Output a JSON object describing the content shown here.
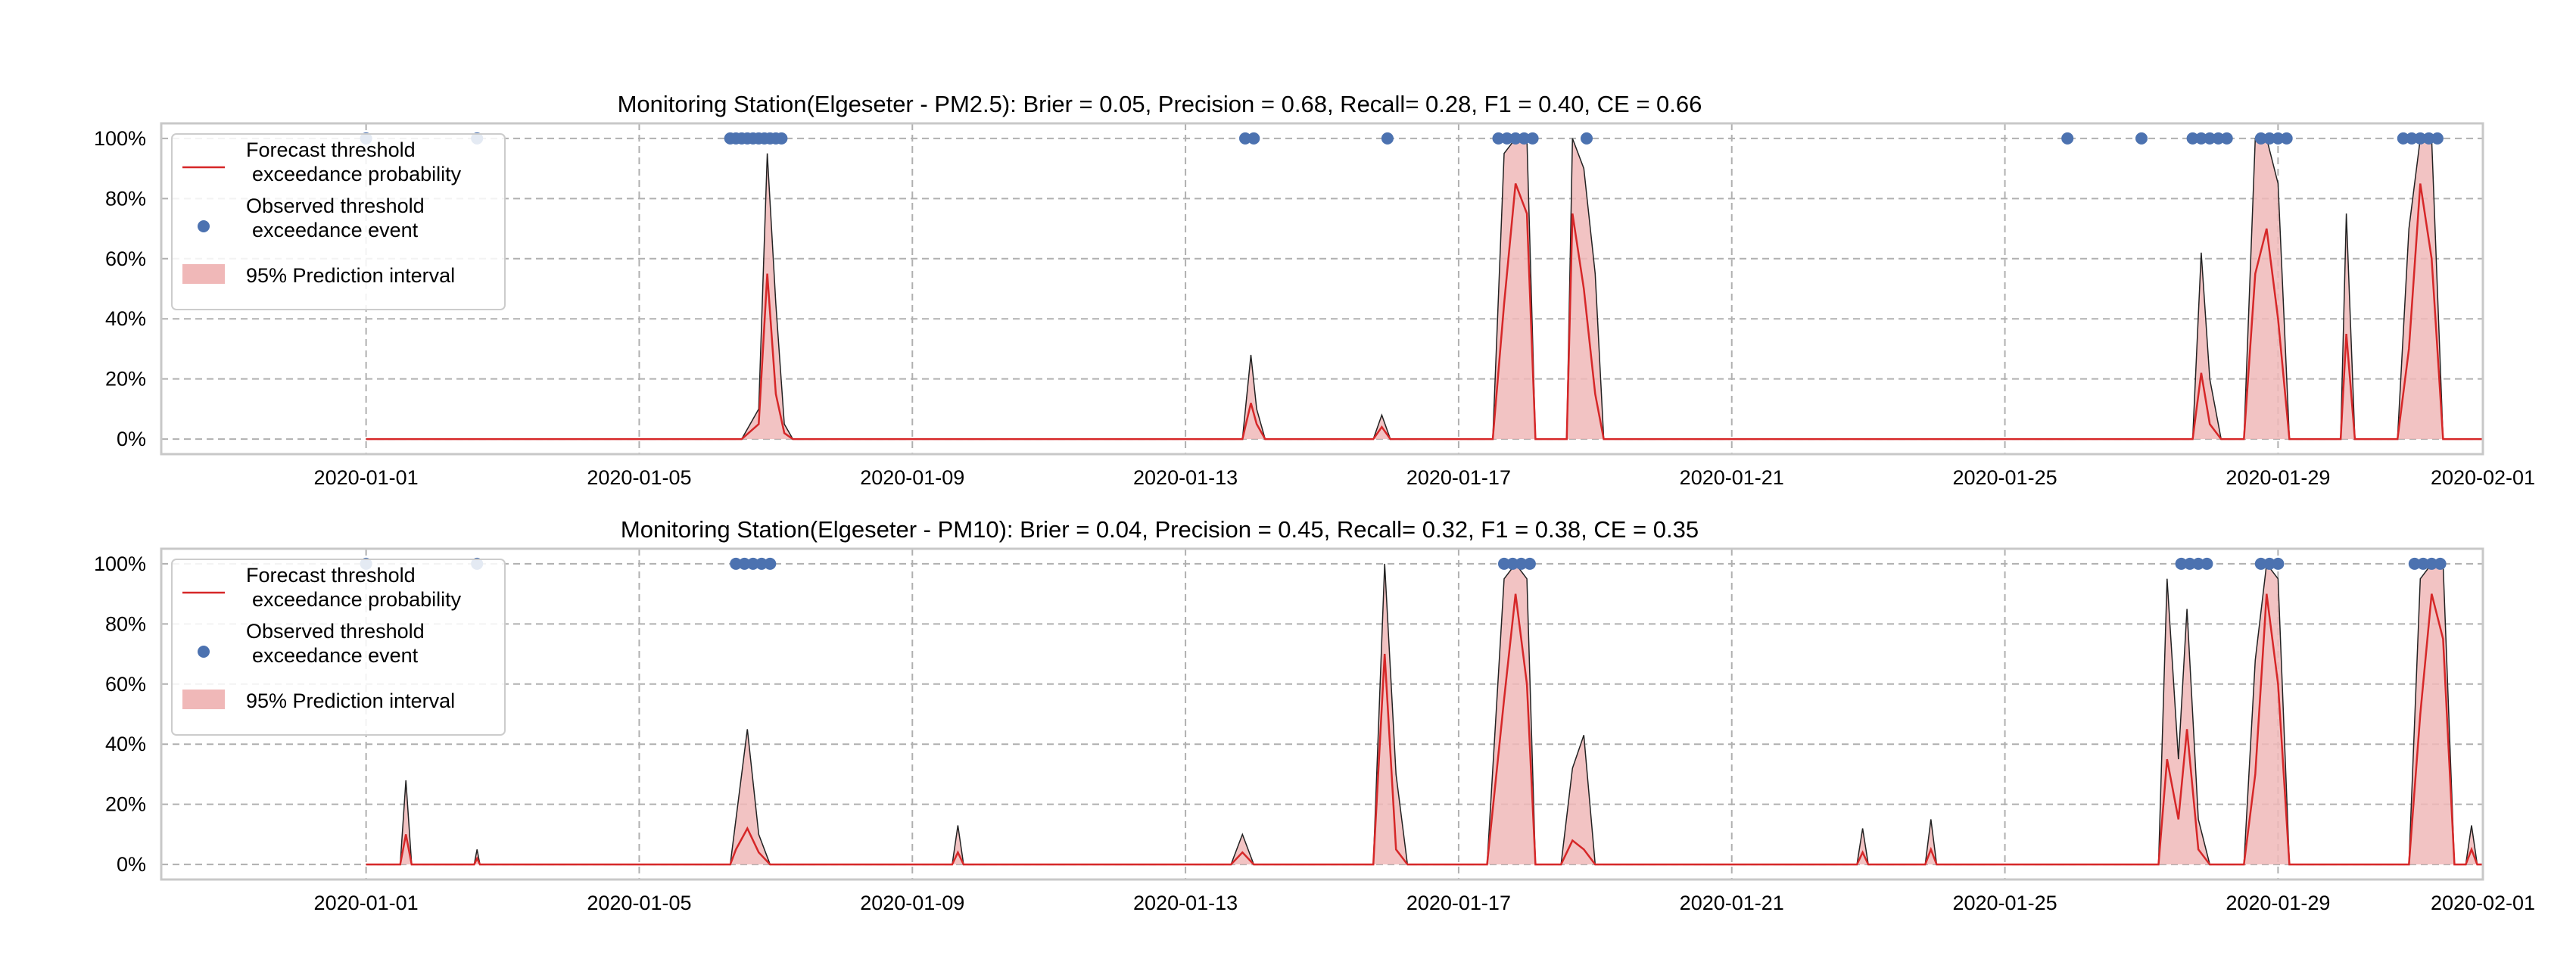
{
  "colors": {
    "forecast_line": "#d62728",
    "observed_marker": "#4c72b0",
    "interval_fill": "#f0b8b8",
    "grid": "#b0b0b0",
    "axes": "#c8c8c8"
  },
  "chart_data": [
    {
      "type": "line",
      "title": "Monitoring Station(Elgeseter - PM2.5): Brier = 0.05, Precision = 0.68, Recall= 0.28, F1 = 0.40, CE = 0.66",
      "xlabel": "",
      "ylabel": "",
      "xlim": [
        "2019-12-29",
        "2020-02-01"
      ],
      "ylim": [
        -0.05,
        1.05
      ],
      "xticks": [
        "2020-01-01",
        "2020-01-05",
        "2020-01-09",
        "2020-01-13",
        "2020-01-17",
        "2020-01-21",
        "2020-01-25",
        "2020-01-29",
        "2020-02-01"
      ],
      "yticks": [
        "0%",
        "20%",
        "40%",
        "60%",
        "80%",
        "100%"
      ],
      "grid": true,
      "legend_position": "top-left",
      "legend": [
        "Forecast threshold\n exceedance probability",
        "Observed threshold\n exceedance event",
        "95% Prediction interval"
      ],
      "forecast_probability": [
        {
          "x": "2020-01-01",
          "y": 0.0
        },
        {
          "x": "2020-01-06 12:00",
          "y": 0.0
        },
        {
          "x": "2020-01-06 18:00",
          "y": 0.05
        },
        {
          "x": "2020-01-06 21:00",
          "y": 0.55
        },
        {
          "x": "2020-01-07 00:00",
          "y": 0.15
        },
        {
          "x": "2020-01-07 03:00",
          "y": 0.02
        },
        {
          "x": "2020-01-07 06:00",
          "y": 0.0
        },
        {
          "x": "2020-01-13 20:00",
          "y": 0.0
        },
        {
          "x": "2020-01-13 23:00",
          "y": 0.12
        },
        {
          "x": "2020-01-14 01:00",
          "y": 0.05
        },
        {
          "x": "2020-01-14 04:00",
          "y": 0.0
        },
        {
          "x": "2020-01-15 18:00",
          "y": 0.0
        },
        {
          "x": "2020-01-15 21:00",
          "y": 0.04
        },
        {
          "x": "2020-01-16 00:00",
          "y": 0.0
        },
        {
          "x": "2020-01-17 12:00",
          "y": 0.0
        },
        {
          "x": "2020-01-17 16:00",
          "y": 0.45
        },
        {
          "x": "2020-01-17 20:00",
          "y": 0.85
        },
        {
          "x": "2020-01-18 00:00",
          "y": 0.75
        },
        {
          "x": "2020-01-18 03:00",
          "y": 0.0
        },
        {
          "x": "2020-01-18 14:00",
          "y": 0.0
        },
        {
          "x": "2020-01-18 16:00",
          "y": 0.75
        },
        {
          "x": "2020-01-18 20:00",
          "y": 0.5
        },
        {
          "x": "2020-01-19 00:00",
          "y": 0.15
        },
        {
          "x": "2020-01-19 03:00",
          "y": 0.0
        },
        {
          "x": "2020-01-27 18:00",
          "y": 0.0
        },
        {
          "x": "2020-01-27 21:00",
          "y": 0.22
        },
        {
          "x": "2020-01-28 00:00",
          "y": 0.05
        },
        {
          "x": "2020-01-28 04:00",
          "y": 0.0
        },
        {
          "x": "2020-01-28 12:00",
          "y": 0.0
        },
        {
          "x": "2020-01-28 16:00",
          "y": 0.55
        },
        {
          "x": "2020-01-28 20:00",
          "y": 0.7
        },
        {
          "x": "2020-01-29 00:00",
          "y": 0.4
        },
        {
          "x": "2020-01-29 04:00",
          "y": 0.0
        },
        {
          "x": "2020-01-29 22:00",
          "y": 0.0
        },
        {
          "x": "2020-01-30 00:00",
          "y": 0.35
        },
        {
          "x": "2020-01-30 03:00",
          "y": 0.0
        },
        {
          "x": "2020-01-30 18:00",
          "y": 0.0
        },
        {
          "x": "2020-01-30 22:00",
          "y": 0.3
        },
        {
          "x": "2020-01-31 02:00",
          "y": 0.85
        },
        {
          "x": "2020-01-31 06:00",
          "y": 0.6
        },
        {
          "x": "2020-01-31 10:00",
          "y": 0.0
        },
        {
          "x": "2020-02-01",
          "y": 0.0
        }
      ],
      "interval_upper": [
        {
          "x": "2020-01-01",
          "y": 0.0
        },
        {
          "x": "2020-01-06 12:00",
          "y": 0.0
        },
        {
          "x": "2020-01-06 18:00",
          "y": 0.1
        },
        {
          "x": "2020-01-06 21:00",
          "y": 0.95
        },
        {
          "x": "2020-01-07 00:00",
          "y": 0.45
        },
        {
          "x": "2020-01-07 03:00",
          "y": 0.05
        },
        {
          "x": "2020-01-07 06:00",
          "y": 0.0
        },
        {
          "x": "2020-01-13 20:00",
          "y": 0.0
        },
        {
          "x": "2020-01-13 23:00",
          "y": 0.28
        },
        {
          "x": "2020-01-14 01:00",
          "y": 0.1
        },
        {
          "x": "2020-01-14 04:00",
          "y": 0.0
        },
        {
          "x": "2020-01-15 18:00",
          "y": 0.0
        },
        {
          "x": "2020-01-15 21:00",
          "y": 0.08
        },
        {
          "x": "2020-01-16 00:00",
          "y": 0.0
        },
        {
          "x": "2020-01-17 12:00",
          "y": 0.0
        },
        {
          "x": "2020-01-17 16:00",
          "y": 0.95
        },
        {
          "x": "2020-01-17 20:00",
          "y": 1.0
        },
        {
          "x": "2020-01-18 00:00",
          "y": 1.0
        },
        {
          "x": "2020-01-18 03:00",
          "y": 0.0
        },
        {
          "x": "2020-01-18 14:00",
          "y": 0.0
        },
        {
          "x": "2020-01-18 16:00",
          "y": 1.0
        },
        {
          "x": "2020-01-18 20:00",
          "y": 0.9
        },
        {
          "x": "2020-01-19 00:00",
          "y": 0.55
        },
        {
          "x": "2020-01-19 03:00",
          "y": 0.0
        },
        {
          "x": "2020-01-27 18:00",
          "y": 0.0
        },
        {
          "x": "2020-01-27 21:00",
          "y": 0.62
        },
        {
          "x": "2020-01-28 00:00",
          "y": 0.2
        },
        {
          "x": "2020-01-28 04:00",
          "y": 0.0
        },
        {
          "x": "2020-01-28 12:00",
          "y": 0.0
        },
        {
          "x": "2020-01-28 16:00",
          "y": 1.0
        },
        {
          "x": "2020-01-28 20:00",
          "y": 1.0
        },
        {
          "x": "2020-01-29 00:00",
          "y": 0.85
        },
        {
          "x": "2020-01-29 04:00",
          "y": 0.0
        },
        {
          "x": "2020-01-29 22:00",
          "y": 0.0
        },
        {
          "x": "2020-01-30 00:00",
          "y": 0.75
        },
        {
          "x": "2020-01-30 03:00",
          "y": 0.0
        },
        {
          "x": "2020-01-30 18:00",
          "y": 0.0
        },
        {
          "x": "2020-01-30 22:00",
          "y": 0.7
        },
        {
          "x": "2020-01-31 02:00",
          "y": 1.0
        },
        {
          "x": "2020-01-31 06:00",
          "y": 1.0
        },
        {
          "x": "2020-01-31 10:00",
          "y": 0.0
        },
        {
          "x": "2020-02-01",
          "y": 0.0
        }
      ],
      "observed_events": [
        "2020-01-01 00:00",
        "2020-01-02 15:00",
        "2020-01-06 08:00",
        "2020-01-06 10:00",
        "2020-01-06 12:00",
        "2020-01-06 14:00",
        "2020-01-06 16:00",
        "2020-01-06 18:00",
        "2020-01-06 20:00",
        "2020-01-06 22:00",
        "2020-01-07 00:00",
        "2020-01-07 02:00",
        "2020-01-13 21:00",
        "2020-01-14 00:00",
        "2020-01-15 23:00",
        "2020-01-17 14:00",
        "2020-01-17 17:00",
        "2020-01-17 20:00",
        "2020-01-17 23:00",
        "2020-01-18 02:00",
        "2020-01-18 21:00",
        "2020-01-25 22:00",
        "2020-01-27 00:00",
        "2020-01-27 18:00",
        "2020-01-27 21:00",
        "2020-01-28 00:00",
        "2020-01-28 03:00",
        "2020-01-28 06:00",
        "2020-01-28 18:00",
        "2020-01-28 21:00",
        "2020-01-29 00:00",
        "2020-01-29 03:00",
        "2020-01-30 20:00",
        "2020-01-30 23:00",
        "2020-01-31 02:00",
        "2020-01-31 05:00",
        "2020-01-31 08:00"
      ]
    },
    {
      "type": "line",
      "title": "Monitoring Station(Elgeseter - PM10): Brier = 0.04, Precision = 0.45, Recall= 0.32, F1 = 0.38, CE = 0.35",
      "xlabel": "",
      "ylabel": "",
      "xlim": [
        "2019-12-29",
        "2020-02-01"
      ],
      "ylim": [
        -0.05,
        1.05
      ],
      "xticks": [
        "2020-01-01",
        "2020-01-05",
        "2020-01-09",
        "2020-01-13",
        "2020-01-17",
        "2020-01-21",
        "2020-01-25",
        "2020-01-29",
        "2020-02-01"
      ],
      "yticks": [
        "0%",
        "20%",
        "40%",
        "60%",
        "80%",
        "100%"
      ],
      "grid": true,
      "legend_position": "top-left",
      "legend": [
        "Forecast threshold\n exceedance probability",
        "Observed threshold\n exceedance event",
        "95% Prediction interval"
      ],
      "forecast_probability": [
        {
          "x": "2020-01-01",
          "y": 0.0
        },
        {
          "x": "2020-01-01 12:00",
          "y": 0.0
        },
        {
          "x": "2020-01-01 14:00",
          "y": 0.1
        },
        {
          "x": "2020-01-01 16:00",
          "y": 0.0
        },
        {
          "x": "2020-01-02 14:00",
          "y": 0.0
        },
        {
          "x": "2020-01-02 15:00",
          "y": 0.02
        },
        {
          "x": "2020-01-02 16:00",
          "y": 0.0
        },
        {
          "x": "2020-01-06 08:00",
          "y": 0.0
        },
        {
          "x": "2020-01-06 10:00",
          "y": 0.05
        },
        {
          "x": "2020-01-06 14:00",
          "y": 0.12
        },
        {
          "x": "2020-01-06 18:00",
          "y": 0.04
        },
        {
          "x": "2020-01-06 22:00",
          "y": 0.0
        },
        {
          "x": "2020-01-09 14:00",
          "y": 0.0
        },
        {
          "x": "2020-01-09 16:00",
          "y": 0.04
        },
        {
          "x": "2020-01-09 18:00",
          "y": 0.0
        },
        {
          "x": "2020-01-13 16:00",
          "y": 0.0
        },
        {
          "x": "2020-01-13 20:00",
          "y": 0.04
        },
        {
          "x": "2020-01-14 00:00",
          "y": 0.0
        },
        {
          "x": "2020-01-15 18:00",
          "y": 0.0
        },
        {
          "x": "2020-01-15 22:00",
          "y": 0.7
        },
        {
          "x": "2020-01-16 02:00",
          "y": 0.05
        },
        {
          "x": "2020-01-16 06:00",
          "y": 0.0
        },
        {
          "x": "2020-01-17 10:00",
          "y": 0.0
        },
        {
          "x": "2020-01-17 16:00",
          "y": 0.55
        },
        {
          "x": "2020-01-17 20:00",
          "y": 0.9
        },
        {
          "x": "2020-01-18 00:00",
          "y": 0.6
        },
        {
          "x": "2020-01-18 03:00",
          "y": 0.0
        },
        {
          "x": "2020-01-18 12:00",
          "y": 0.0
        },
        {
          "x": "2020-01-18 16:00",
          "y": 0.08
        },
        {
          "x": "2020-01-18 20:00",
          "y": 0.05
        },
        {
          "x": "2020-01-19 00:00",
          "y": 0.0
        },
        {
          "x": "2020-01-22 20:00",
          "y": 0.0
        },
        {
          "x": "2020-01-22 22:00",
          "y": 0.04
        },
        {
          "x": "2020-01-23 00:00",
          "y": 0.0
        },
        {
          "x": "2020-01-23 20:00",
          "y": 0.0
        },
        {
          "x": "2020-01-23 22:00",
          "y": 0.05
        },
        {
          "x": "2020-01-24 00:00",
          "y": 0.0
        },
        {
          "x": "2020-01-27 06:00",
          "y": 0.0
        },
        {
          "x": "2020-01-27 09:00",
          "y": 0.35
        },
        {
          "x": "2020-01-27 13:00",
          "y": 0.15
        },
        {
          "x": "2020-01-27 16:00",
          "y": 0.45
        },
        {
          "x": "2020-01-27 20:00",
          "y": 0.05
        },
        {
          "x": "2020-01-28 00:00",
          "y": 0.0
        },
        {
          "x": "2020-01-28 12:00",
          "y": 0.0
        },
        {
          "x": "2020-01-28 16:00",
          "y": 0.3
        },
        {
          "x": "2020-01-28 20:00",
          "y": 0.9
        },
        {
          "x": "2020-01-29 00:00",
          "y": 0.6
        },
        {
          "x": "2020-01-29 04:00",
          "y": 0.0
        },
        {
          "x": "2020-01-30 22:00",
          "y": 0.0
        },
        {
          "x": "2020-01-31 02:00",
          "y": 0.5
        },
        {
          "x": "2020-01-31 06:00",
          "y": 0.9
        },
        {
          "x": "2020-01-31 10:00",
          "y": 0.75
        },
        {
          "x": "2020-01-31 14:00",
          "y": 0.0
        },
        {
          "x": "2020-01-31 18:00",
          "y": 0.0
        },
        {
          "x": "2020-01-31 20:00",
          "y": 0.05
        },
        {
          "x": "2020-01-31 22:00",
          "y": 0.0
        },
        {
          "x": "2020-02-01",
          "y": 0.0
        }
      ],
      "interval_upper": [
        {
          "x": "2020-01-01",
          "y": 0.0
        },
        {
          "x": "2020-01-01 12:00",
          "y": 0.0
        },
        {
          "x": "2020-01-01 14:00",
          "y": 0.28
        },
        {
          "x": "2020-01-01 16:00",
          "y": 0.0
        },
        {
          "x": "2020-01-02 14:00",
          "y": 0.0
        },
        {
          "x": "2020-01-02 15:00",
          "y": 0.05
        },
        {
          "x": "2020-01-02 16:00",
          "y": 0.0
        },
        {
          "x": "2020-01-06 08:00",
          "y": 0.0
        },
        {
          "x": "2020-01-06 10:00",
          "y": 0.15
        },
        {
          "x": "2020-01-06 14:00",
          "y": 0.45
        },
        {
          "x": "2020-01-06 18:00",
          "y": 0.1
        },
        {
          "x": "2020-01-06 22:00",
          "y": 0.0
        },
        {
          "x": "2020-01-09 14:00",
          "y": 0.0
        },
        {
          "x": "2020-01-09 16:00",
          "y": 0.13
        },
        {
          "x": "2020-01-09 18:00",
          "y": 0.0
        },
        {
          "x": "2020-01-13 16:00",
          "y": 0.0
        },
        {
          "x": "2020-01-13 20:00",
          "y": 0.1
        },
        {
          "x": "2020-01-14 00:00",
          "y": 0.0
        },
        {
          "x": "2020-01-15 18:00",
          "y": 0.0
        },
        {
          "x": "2020-01-15 22:00",
          "y": 1.0
        },
        {
          "x": "2020-01-16 02:00",
          "y": 0.3
        },
        {
          "x": "2020-01-16 06:00",
          "y": 0.0
        },
        {
          "x": "2020-01-17 10:00",
          "y": 0.0
        },
        {
          "x": "2020-01-17 16:00",
          "y": 0.95
        },
        {
          "x": "2020-01-17 20:00",
          "y": 1.0
        },
        {
          "x": "2020-01-18 00:00",
          "y": 0.95
        },
        {
          "x": "2020-01-18 03:00",
          "y": 0.0
        },
        {
          "x": "2020-01-18 12:00",
          "y": 0.0
        },
        {
          "x": "2020-01-18 16:00",
          "y": 0.32
        },
        {
          "x": "2020-01-18 20:00",
          "y": 0.43
        },
        {
          "x": "2020-01-19 00:00",
          "y": 0.0
        },
        {
          "x": "2020-01-22 20:00",
          "y": 0.0
        },
        {
          "x": "2020-01-22 22:00",
          "y": 0.12
        },
        {
          "x": "2020-01-23 00:00",
          "y": 0.0
        },
        {
          "x": "2020-01-23 20:00",
          "y": 0.0
        },
        {
          "x": "2020-01-23 22:00",
          "y": 0.15
        },
        {
          "x": "2020-01-24 00:00",
          "y": 0.0
        },
        {
          "x": "2020-01-27 06:00",
          "y": 0.0
        },
        {
          "x": "2020-01-27 09:00",
          "y": 0.95
        },
        {
          "x": "2020-01-27 13:00",
          "y": 0.35
        },
        {
          "x": "2020-01-27 16:00",
          "y": 0.85
        },
        {
          "x": "2020-01-27 20:00",
          "y": 0.15
        },
        {
          "x": "2020-01-28 00:00",
          "y": 0.0
        },
        {
          "x": "2020-01-28 12:00",
          "y": 0.0
        },
        {
          "x": "2020-01-28 16:00",
          "y": 0.68
        },
        {
          "x": "2020-01-28 20:00",
          "y": 1.0
        },
        {
          "x": "2020-01-29 00:00",
          "y": 0.95
        },
        {
          "x": "2020-01-29 04:00",
          "y": 0.0
        },
        {
          "x": "2020-01-30 22:00",
          "y": 0.0
        },
        {
          "x": "2020-01-31 02:00",
          "y": 0.95
        },
        {
          "x": "2020-01-31 06:00",
          "y": 1.0
        },
        {
          "x": "2020-01-31 10:00",
          "y": 1.0
        },
        {
          "x": "2020-01-31 14:00",
          "y": 0.0
        },
        {
          "x": "2020-01-31 18:00",
          "y": 0.0
        },
        {
          "x": "2020-01-31 20:00",
          "y": 0.13
        },
        {
          "x": "2020-01-31 22:00",
          "y": 0.0
        },
        {
          "x": "2020-02-01",
          "y": 0.0
        }
      ],
      "observed_events": [
        "2020-01-01 00:00",
        "2020-01-02 15:00",
        "2020-01-06 10:00",
        "2020-01-06 13:00",
        "2020-01-06 16:00",
        "2020-01-06 19:00",
        "2020-01-06 22:00",
        "2020-01-17 16:00",
        "2020-01-17 19:00",
        "2020-01-17 22:00",
        "2020-01-18 01:00",
        "2020-01-27 14:00",
        "2020-01-27 17:00",
        "2020-01-27 20:00",
        "2020-01-27 23:00",
        "2020-01-28 18:00",
        "2020-01-28 21:00",
        "2020-01-29 00:00",
        "2020-01-31 00:00",
        "2020-01-31 03:00",
        "2020-01-31 06:00",
        "2020-01-31 09:00"
      ]
    }
  ]
}
